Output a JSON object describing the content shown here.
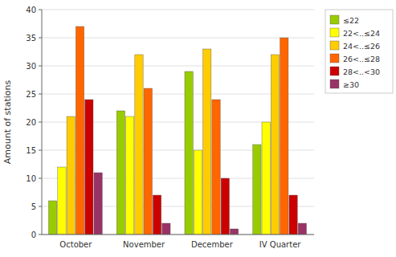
{
  "chart_data": {
    "type": "bar",
    "categories": [
      "October",
      "November",
      "December",
      "IV Quarter"
    ],
    "series": [
      {
        "name": "≤22",
        "color": "#99cc00",
        "values": [
          6,
          22,
          29,
          16
        ]
      },
      {
        "name": "22<..≤24",
        "color": "#ffff00",
        "values": [
          12,
          21,
          15,
          20
        ]
      },
      {
        "name": "24<..≤26",
        "color": "#ffcc00",
        "values": [
          21,
          32,
          33,
          32
        ]
      },
      {
        "name": "26<..≤28",
        "color": "#ff6600",
        "values": [
          37,
          26,
          24,
          35
        ]
      },
      {
        "name": "28<..<30",
        "color": "#cc0000",
        "values": [
          24,
          7,
          10,
          7
        ]
      },
      {
        "name": "≥30",
        "color": "#993366",
        "values": [
          11,
          2,
          1,
          2
        ]
      }
    ],
    "y_label": "Amount of stations",
    "ylim": [
      0,
      40
    ],
    "yticks": [
      0,
      5,
      10,
      15,
      20,
      25,
      30,
      35,
      40
    ],
    "grid": true,
    "legend": "upper right"
  }
}
